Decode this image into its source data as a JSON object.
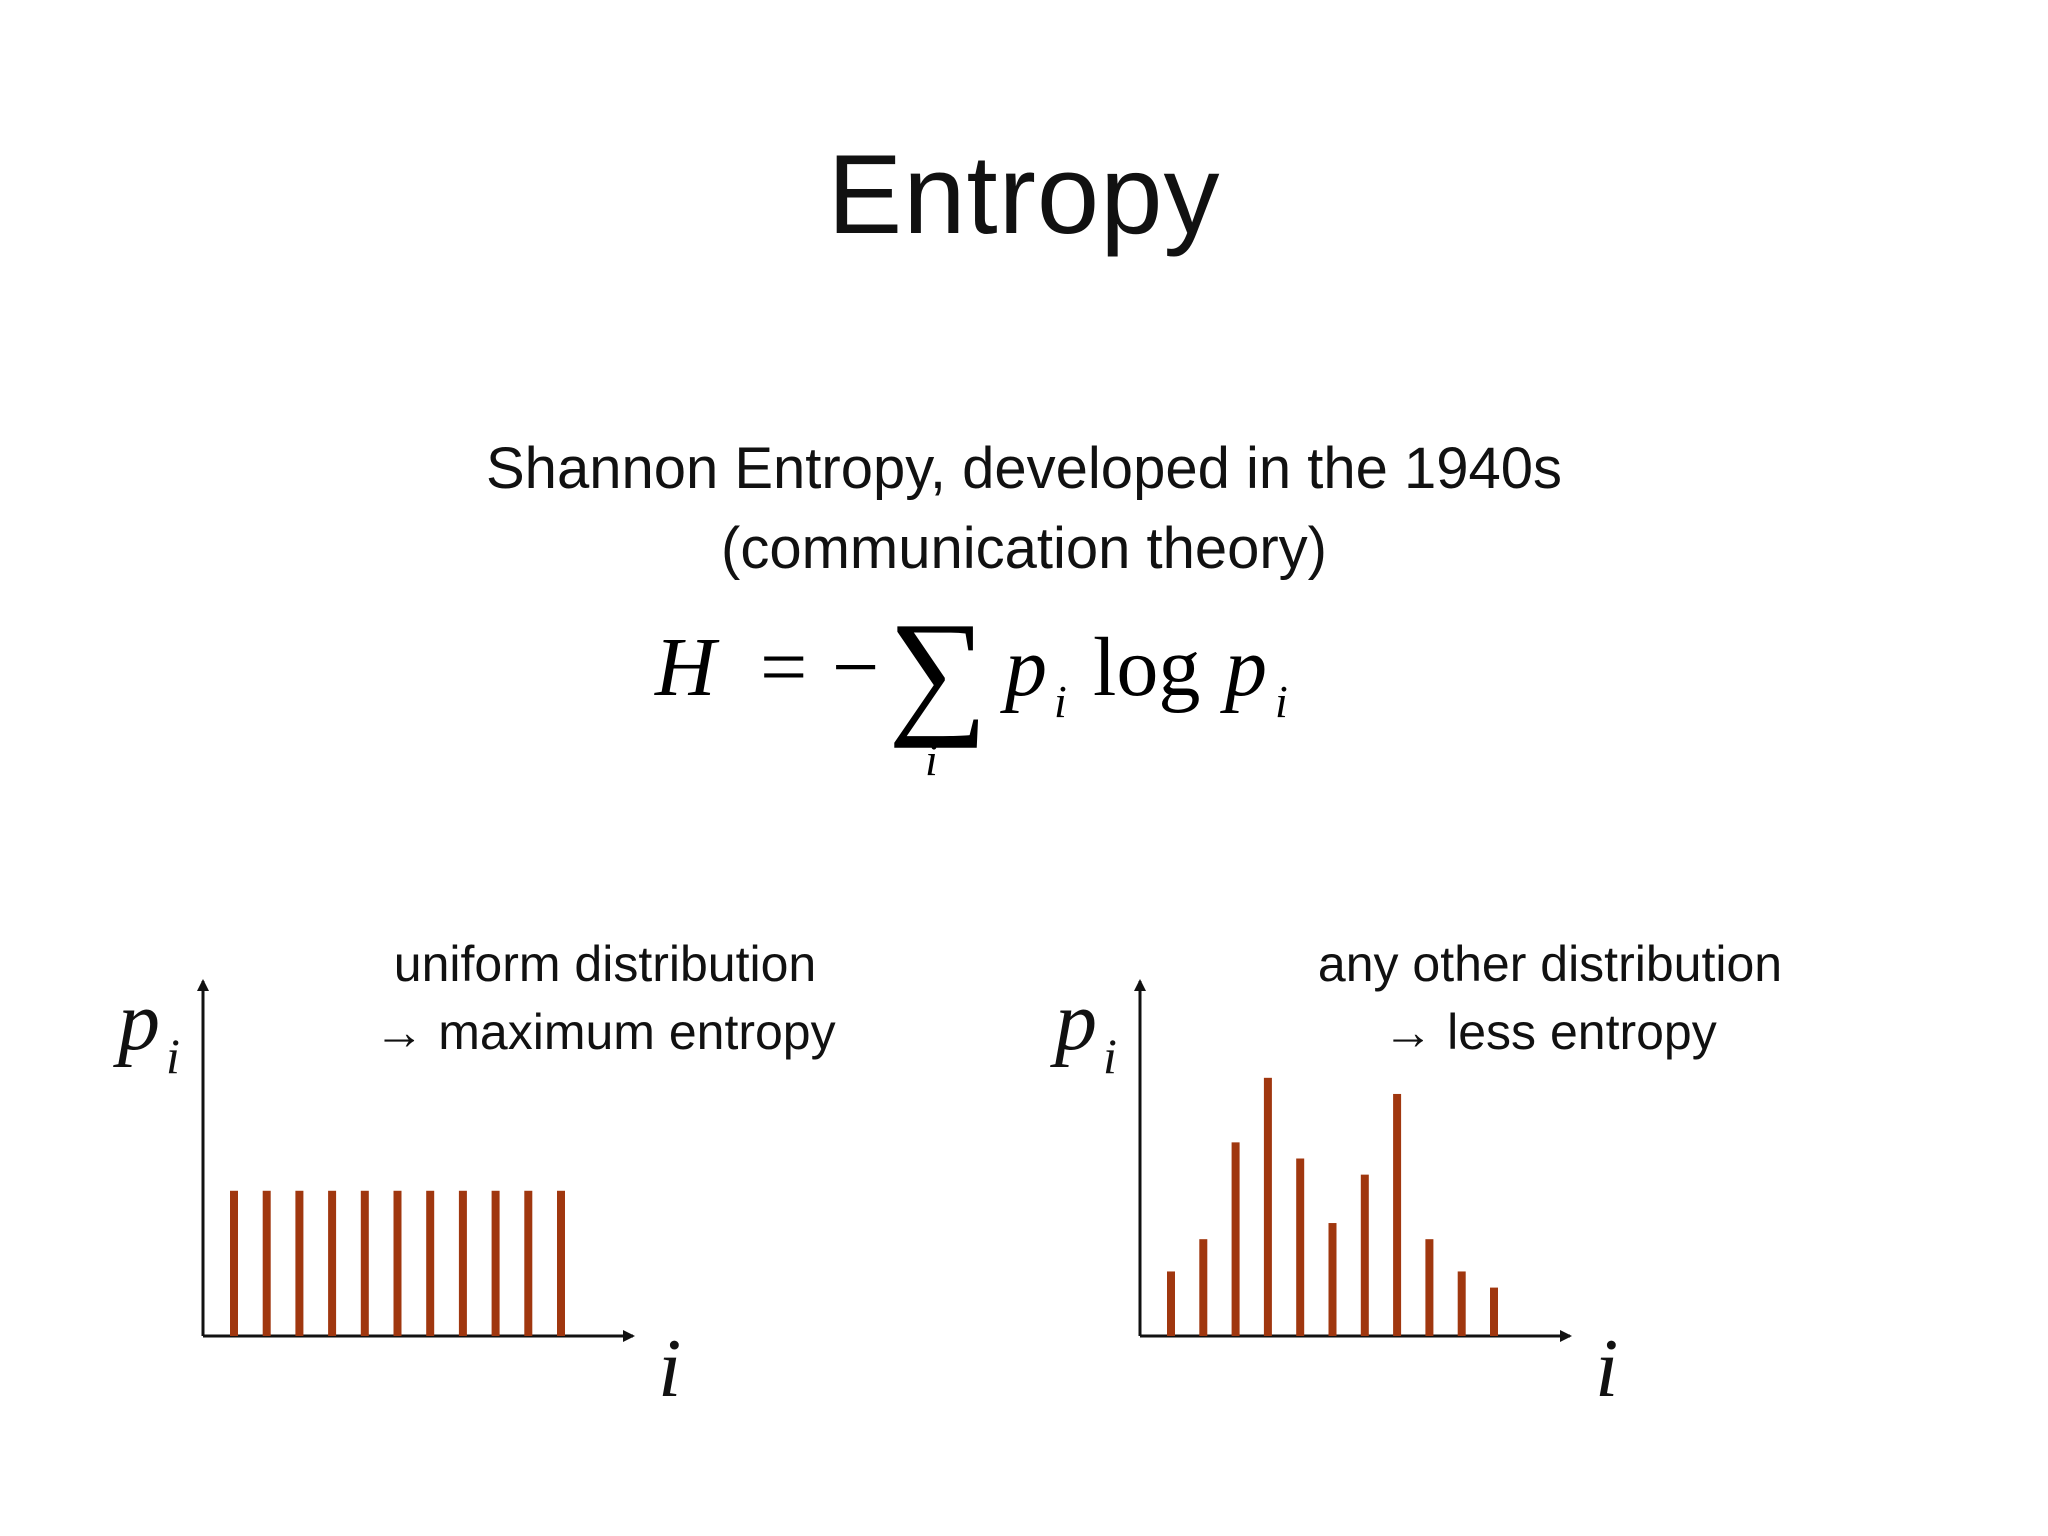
{
  "slide": {
    "title": "Entropy",
    "subtitle_line1": "Shannon Entropy, developed in the 1940s",
    "subtitle_line2": "(communication theory)"
  },
  "formula": {
    "lhs": "H",
    "equals": "=",
    "minus": "−",
    "sum_symbol": "∑",
    "sum_index": "i",
    "term1": "p",
    "term1_sub": "i",
    "log": "log",
    "term2": "p",
    "term2_sub": "i"
  },
  "bar_color": "#a0370f",
  "chart_data": [
    {
      "type": "bar",
      "caption_line1": "uniform distribution",
      "caption_line2": "→ maximum entropy",
      "ylabel": "p",
      "ylabel_sub": "i",
      "xlabel": "i",
      "values": [
        0.45,
        0.45,
        0.45,
        0.45,
        0.45,
        0.45,
        0.45,
        0.45,
        0.45,
        0.45,
        0.45
      ],
      "ylim": [
        0,
        1.1
      ],
      "axis_ticks": false
    },
    {
      "type": "bar",
      "caption_line1": "any other distribution",
      "caption_line2": "→ less entropy",
      "ylabel": "p",
      "ylabel_sub": "i",
      "xlabel": "i",
      "values": [
        0.2,
        0.3,
        0.6,
        0.8,
        0.55,
        0.35,
        0.5,
        0.75,
        0.3,
        0.2,
        0.15
      ],
      "ylim": [
        0,
        1.1
      ],
      "axis_ticks": false
    }
  ]
}
